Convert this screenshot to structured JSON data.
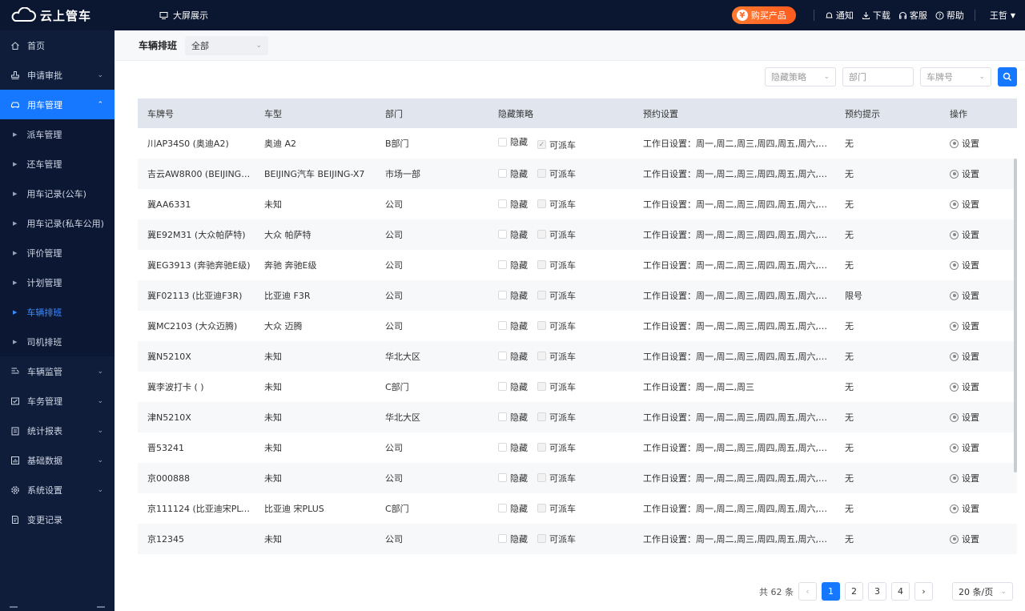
{
  "topbar": {
    "brand": "云上管车",
    "big_screen": "大屏展示",
    "buy": "购买产品",
    "notice": "通知",
    "download": "下载",
    "service": "客服",
    "help": "帮助",
    "user": "王哲"
  },
  "sidebar": {
    "home": "首页",
    "approval": "申请审批",
    "vehicle_use": "用车管理",
    "sub": [
      "派车管理",
      "还车管理",
      "用车记录(公车)",
      "用车记录(私车公用)",
      "评价管理",
      "计划管理",
      "车辆排班",
      "司机排班"
    ],
    "monitor": "车辆监管",
    "affairs": "车务管理",
    "report": "统计报表",
    "basic": "基础数据",
    "settings": "系统设置",
    "changelog": "变更记录"
  },
  "page": {
    "title": "车辆排班",
    "scope_value": "全部"
  },
  "filters": {
    "strategy": "隐藏策略",
    "dept": "部门",
    "plate": "车牌号"
  },
  "table": {
    "headers": [
      "车牌号",
      "车型",
      "部门",
      "隐藏策略",
      "预约设置",
      "预约提示",
      "操作"
    ],
    "hide_label": "隐藏",
    "dispatch_label": "可派车",
    "action_label": "设置",
    "rows": [
      {
        "plate": "川AP34S0 (奥迪A2)",
        "model": "奥迪 A2",
        "dept": "B部门",
        "dispatch_checked": true,
        "setting": "工作日设置：周一,周二,周三,周四,周五,周六,周日",
        "tip": "无"
      },
      {
        "plate": "吉云AW8R00 (BEIJING汽…",
        "model": "BEIJING汽车 BEIJING-X7",
        "dept": "市场一部",
        "dispatch_checked": false,
        "setting": "工作日设置：周一,周二,周三,周四,周五,周六,周日",
        "tip": "无"
      },
      {
        "plate": "冀AA6331",
        "model": "未知",
        "dept": "公司",
        "dispatch_checked": false,
        "setting": "工作日设置：周一,周二,周三,周四,周五,周六,周日",
        "tip": "无"
      },
      {
        "plate": "冀E92M31 (大众帕萨特)",
        "model": "大众 帕萨特",
        "dept": "公司",
        "dispatch_checked": false,
        "setting": "工作日设置：周一,周二,周三,周四,周五,周六,周日",
        "tip": "无"
      },
      {
        "plate": "冀EG3913 (奔驰奔驰E级)",
        "model": "奔驰 奔驰E级",
        "dept": "公司",
        "dispatch_checked": false,
        "setting": "工作日设置：周一,周二,周三,周四,周五,周六,周日",
        "tip": "无"
      },
      {
        "plate": "冀F02113 (比亚迪F3R)",
        "model": "比亚迪 F3R",
        "dept": "公司",
        "dispatch_checked": false,
        "setting": "工作日设置：周一,周二,周三,周四,周五,周六,周日",
        "tip": "限号"
      },
      {
        "plate": "冀MC2103 (大众迈腾)",
        "model": "大众 迈腾",
        "dept": "公司",
        "dispatch_checked": false,
        "setting": "工作日设置：周一,周二,周三,周四,周五,周六,周日",
        "tip": "无"
      },
      {
        "plate": "冀N5210X",
        "model": "未知",
        "dept": "华北大区",
        "dispatch_checked": false,
        "setting": "工作日设置：周一,周二,周三,周四,周五,周六,周日",
        "tip": "无"
      },
      {
        "plate": "冀李波打卡 ( )",
        "model": "未知",
        "dept": "C部门",
        "dispatch_checked": false,
        "setting": "工作日设置：周一,周二,周三",
        "tip": "无"
      },
      {
        "plate": "津N5210X",
        "model": "未知",
        "dept": "华北大区",
        "dispatch_checked": false,
        "setting": "工作日设置：周一,周二,周三,周四,周五,周六,周日",
        "tip": "无"
      },
      {
        "plate": "晋53241",
        "model": "未知",
        "dept": "公司",
        "dispatch_checked": false,
        "setting": "工作日设置：周一,周二,周三,周四,周五,周六,周日",
        "tip": "无"
      },
      {
        "plate": "京000888",
        "model": "未知",
        "dept": "公司",
        "dispatch_checked": false,
        "setting": "工作日设置：周一,周二,周三,周四,周五,周六,周日",
        "tip": "无"
      },
      {
        "plate": "京111124 (比亚迪宋PLUS)",
        "model": "比亚迪 宋PLUS",
        "dept": "C部门",
        "dispatch_checked": false,
        "setting": "工作日设置：周一,周二,周三,周四,周五,周六,周日",
        "tip": "无"
      },
      {
        "plate": "京12345",
        "model": "未知",
        "dept": "公司",
        "dispatch_checked": false,
        "setting": "工作日设置：周一,周二,周三,周四,周五,周六,周日",
        "tip": "无"
      }
    ]
  },
  "pagination": {
    "total": "共 62 条",
    "pages": [
      "1",
      "2",
      "3",
      "4"
    ],
    "current": "1",
    "page_size": "20 条/页"
  },
  "colors": {
    "accent": "#1677ff",
    "sidebar_bg": "#0f1d3b",
    "topbar_bg": "#0b1730",
    "buy_btn": "#ff6a25"
  }
}
